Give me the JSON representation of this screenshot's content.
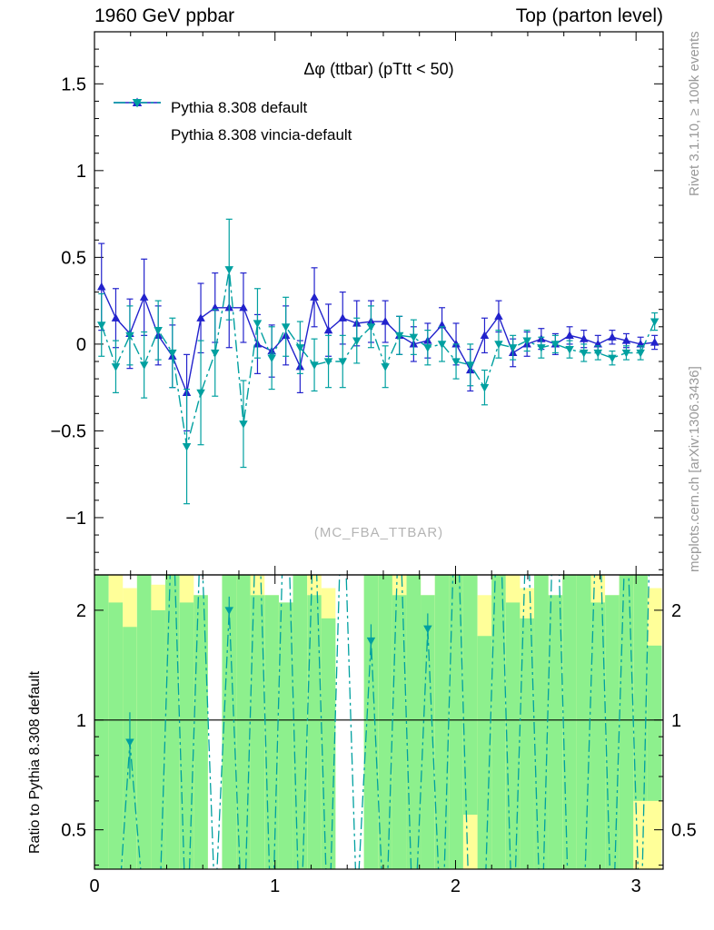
{
  "header": {
    "left": "1960 GeV ppbar",
    "right": "Top (parton level)"
  },
  "title": "Δφ (ttbar) (pTtt < 50)",
  "watermark": "(MC_FBA_TTBAR)",
  "ratio_ylabel": "Ratio to Pythia 8.308 default",
  "side_texts": {
    "rivet": "Rivet 3.1.10, ≥ 100k events",
    "mcplots": "mcplots.cern.ch [arXiv:1306.3436]"
  },
  "legend": [
    {
      "label": "Pythia 8.308 default",
      "color": "#2222cc",
      "marker": "triangle-up",
      "line": "solid"
    },
    {
      "label": "Pythia 8.308 vincia-default",
      "color": "#00a0a0",
      "marker": "triangle-down",
      "line": "dashdot"
    }
  ],
  "colors": {
    "blue": "#2222cc",
    "teal": "#00a0a0",
    "band_green": "#8df08d",
    "band_yellow": "#ffff99",
    "frame": "#000000",
    "gray_text": "#999999",
    "watermark": "#b4b4b4"
  },
  "chart_data": {
    "type": "line",
    "title": "Δφ (ttbar) (pTtt < 50)",
    "x": [
      0.039,
      0.118,
      0.196,
      0.275,
      0.353,
      0.432,
      0.511,
      0.589,
      0.668,
      0.746,
      0.825,
      0.903,
      0.982,
      1.06,
      1.139,
      1.218,
      1.296,
      1.375,
      1.453,
      1.532,
      1.611,
      1.689,
      1.768,
      1.846,
      1.925,
      2.003,
      2.082,
      2.161,
      2.239,
      2.318,
      2.396,
      2.475,
      2.553,
      2.632,
      2.711,
      2.789,
      2.868,
      2.946,
      3.025,
      3.103
    ],
    "bin_width": 0.0785,
    "series": [
      {
        "name": "Pythia 8.308 default",
        "color": "#2222cc",
        "marker": "triangle-up",
        "line": "solid",
        "values": [
          0.33,
          0.15,
          0.06,
          0.27,
          0.05,
          -0.07,
          -0.28,
          0.15,
          0.21,
          0.21,
          0.21,
          0.0,
          -0.04,
          0.05,
          -0.13,
          0.27,
          0.08,
          0.15,
          0.12,
          0.13,
          0.13,
          0.05,
          0.0,
          0.02,
          0.11,
          0.0,
          -0.15,
          0.05,
          0.16,
          -0.05,
          0.0,
          0.03,
          0.0,
          0.05,
          0.03,
          0.0,
          0.04,
          0.02,
          0.0,
          0.01
        ],
        "errors": [
          0.25,
          0.17,
          0.2,
          0.22,
          0.17,
          0.18,
          0.22,
          0.2,
          0.2,
          0.23,
          0.2,
          0.17,
          0.15,
          0.17,
          0.15,
          0.17,
          0.15,
          0.15,
          0.13,
          0.12,
          0.12,
          0.11,
          0.1,
          0.1,
          0.1,
          0.12,
          0.12,
          0.1,
          0.09,
          0.08,
          0.07,
          0.06,
          0.06,
          0.05,
          0.05,
          0.05,
          0.04,
          0.04,
          0.04,
          0.04
        ]
      },
      {
        "name": "Pythia 8.308 vincia-default",
        "color": "#00a0a0",
        "marker": "triangle-down",
        "line": "dashdot",
        "values": [
          0.11,
          -0.13,
          0.05,
          -0.12,
          0.08,
          -0.05,
          -0.59,
          -0.28,
          -0.05,
          0.43,
          -0.46,
          0.12,
          -0.08,
          0.1,
          -0.02,
          -0.12,
          -0.1,
          -0.1,
          0.02,
          0.1,
          -0.13,
          0.05,
          0.04,
          -0.02,
          0.0,
          -0.1,
          -0.12,
          -0.25,
          0.0,
          -0.02,
          0.02,
          -0.02,
          0.0,
          -0.03,
          -0.05,
          -0.05,
          -0.08,
          -0.05,
          -0.05,
          0.13
        ],
        "errors": [
          0.18,
          0.15,
          0.17,
          0.19,
          0.17,
          0.2,
          0.33,
          0.3,
          0.25,
          0.29,
          0.25,
          0.2,
          0.18,
          0.17,
          0.15,
          0.15,
          0.15,
          0.15,
          0.13,
          0.12,
          0.12,
          0.11,
          0.1,
          0.1,
          0.1,
          0.1,
          0.12,
          0.1,
          0.08,
          0.07,
          0.06,
          0.06,
          0.05,
          0.05,
          0.05,
          0.04,
          0.04,
          0.04,
          0.04,
          0.05
        ]
      }
    ],
    "axes": {
      "xlim": [
        0,
        3.15
      ],
      "xticks": {
        "values": [
          0,
          1,
          2,
          3
        ],
        "labels": [
          "0",
          "1",
          "2",
          "3"
        ]
      },
      "xminor_step": 0.2,
      "top_ylim": [
        -1.33,
        1.8
      ],
      "top_yticks": {
        "values": [
          1.5,
          1,
          0.5,
          0,
          -0.5,
          -1
        ],
        "labels": [
          "1.5",
          "1",
          "0.5",
          "0",
          "−0.5",
          "−1"
        ]
      },
      "top_yminor_step": 0.1,
      "ratio_ylim": [
        0.39,
        2.5
      ],
      "ratio_scale": "log",
      "ratio_yticks": {
        "values": [
          2,
          1,
          0.5
        ],
        "labels": [
          "2",
          "1",
          "0.5"
        ]
      },
      "ratio_yminor": [
        0.4,
        0.6,
        0.7,
        0.8,
        0.9
      ]
    },
    "ratio": {
      "reference_line": 1,
      "values": [
        0.33,
        -3,
        0.87,
        0.3,
        -2,
        4,
        -3,
        3.5,
        0.3,
        2.0,
        -4,
        5,
        -3,
        6,
        -0.2,
        4,
        -4,
        5,
        0.3,
        1.65,
        -3,
        4,
        -4,
        1.78,
        -0.2,
        5,
        -4,
        0.3,
        5,
        -3,
        4,
        -0.2,
        6,
        -4,
        0.3,
        5,
        -3,
        4,
        -4,
        13
      ],
      "marker_error": 0.18,
      "visible_range": [
        0.42,
        2.3
      ],
      "bands": [
        [
          0.39,
          2.5,
          0.39,
          2.5
        ],
        [
          0.39,
          2.5,
          0.39,
          2.1
        ],
        [
          0.39,
          2.3,
          0.39,
          1.8
        ],
        [
          0.39,
          2.5,
          0.39,
          2.5
        ],
        [
          0.39,
          2.35,
          0.39,
          2.0
        ],
        [
          0.39,
          2.5,
          0.39,
          2.5
        ],
        [
          0.39,
          2.5,
          0.39,
          2.1
        ],
        [
          0.39,
          2.2,
          0.39,
          2.2
        ],
        null,
        [
          0.39,
          2.5,
          0.39,
          2.5
        ],
        [
          0.39,
          2.5,
          0.39,
          2.5
        ],
        [
          0.39,
          2.5,
          0.39,
          2.2
        ],
        [
          0.39,
          2.2,
          0.39,
          2.2
        ],
        [
          0.39,
          2.1,
          0.39,
          2.1
        ],
        [
          0.39,
          2.5,
          0.39,
          2.5
        ],
        [
          0.39,
          2.5,
          0.39,
          2.2
        ],
        [
          0.39,
          2.3,
          0.39,
          1.9
        ],
        null,
        null,
        [
          0.39,
          2.5,
          0.39,
          2.5
        ],
        [
          0.39,
          2.5,
          0.39,
          2.5
        ],
        [
          0.39,
          2.5,
          0.39,
          2.2
        ],
        [
          0.39,
          2.5,
          0.39,
          2.5
        ],
        [
          0.39,
          2.2,
          0.39,
          2.2
        ],
        [
          0.39,
          2.5,
          0.39,
          2.5
        ],
        [
          0.39,
          2.5,
          0.39,
          2.5
        ],
        [
          0.39,
          2.5,
          0.55,
          2.5
        ],
        [
          0.39,
          2.2,
          0.39,
          1.7
        ],
        [
          0.39,
          2.5,
          0.39,
          2.5
        ],
        [
          0.39,
          2.5,
          0.39,
          2.1
        ],
        [
          0.39,
          2.3,
          0.39,
          1.9
        ],
        [
          0.39,
          2.5,
          0.39,
          2.5
        ],
        [
          0.39,
          2.2,
          0.39,
          2.2
        ],
        [
          0.39,
          2.5,
          0.39,
          2.5
        ],
        [
          0.39,
          2.5,
          0.39,
          2.5
        ],
        [
          0.39,
          2.5,
          0.39,
          2.1
        ],
        [
          0.39,
          2.2,
          0.39,
          2.2
        ],
        [
          0.39,
          2.5,
          0.39,
          2.5
        ],
        [
          0.39,
          2.5,
          0.6,
          2.5
        ],
        [
          0.39,
          2.3,
          0.6,
          1.6
        ]
      ]
    }
  }
}
